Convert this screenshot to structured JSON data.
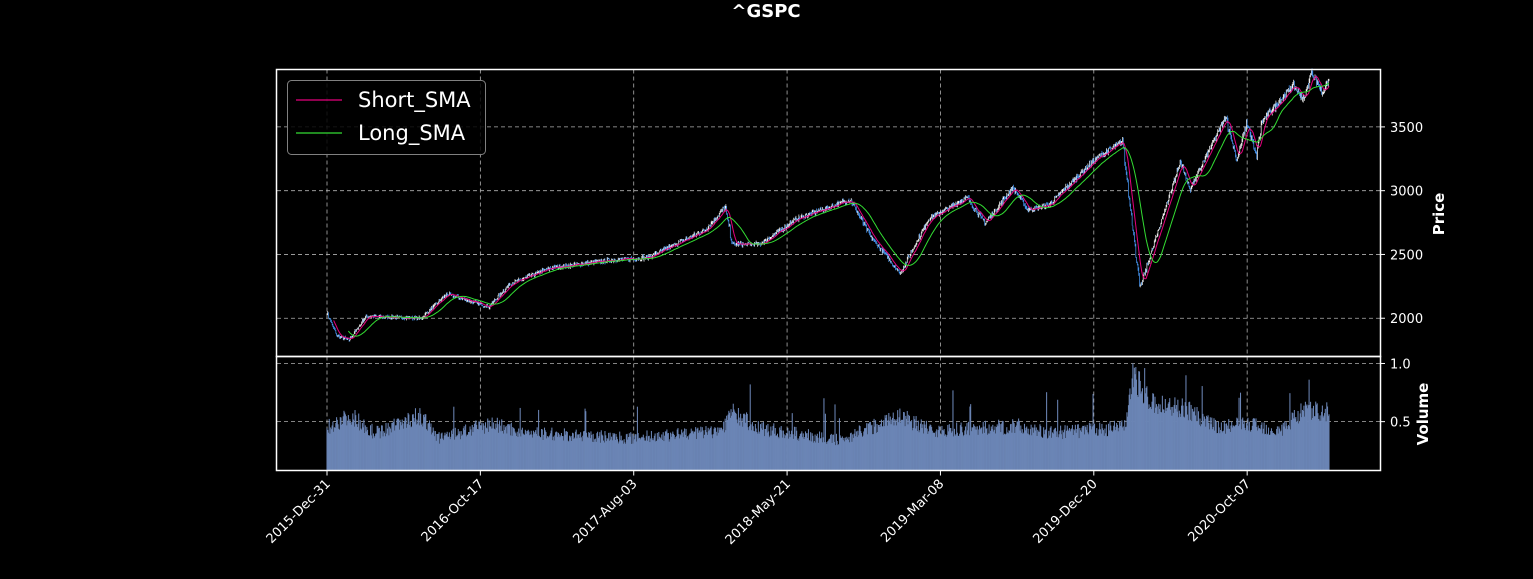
{
  "figure_title": "^GSPC",
  "colors": {
    "background": "#000000",
    "axes_edge": "#ffffff",
    "grid": "#b0b0b0",
    "candle_up": "#ffffff",
    "candle_down": "#4a9eff",
    "short_sma": "#e6007e",
    "long_sma": "#33dd33",
    "volume": "#6b85b5"
  },
  "chart_data": [
    {
      "type": "candlestick",
      "title": "^GSPC",
      "ylabel": "Price",
      "ylim": [
        1700,
        3950
      ],
      "yticks": [
        2000,
        2500,
        3000,
        3500
      ],
      "grid": true,
      "y_axis_side": "right",
      "legend_position": "upper-left",
      "legend": [
        "Short_SMA",
        "Long_SMA"
      ],
      "xtick_labels": [
        "2015-Dec-31",
        "2016-Oct-17",
        "2017-Aug-03",
        "2018-May-21",
        "2019-Mar-08",
        "2019-Dec-20",
        "2020-Oct-07"
      ],
      "price_waypoints": [
        [
          "2015-12-31",
          2044
        ],
        [
          "2016-01-20",
          1860
        ],
        [
          "2016-02-11",
          1829
        ],
        [
          "2016-03-15",
          2015
        ],
        [
          "2016-06-27",
          2000
        ],
        [
          "2016-08-15",
          2190
        ],
        [
          "2016-11-03",
          2090
        ],
        [
          "2016-12-13",
          2270
        ],
        [
          "2017-03-01",
          2395
        ],
        [
          "2017-06-19",
          2453
        ],
        [
          "2017-09-01",
          2476
        ],
        [
          "2017-12-18",
          2690
        ],
        [
          "2018-01-26",
          2872
        ],
        [
          "2018-02-08",
          2580
        ],
        [
          "2018-04-02",
          2580
        ],
        [
          "2018-06-11",
          2780
        ],
        [
          "2018-09-20",
          2930
        ],
        [
          "2018-10-29",
          2640
        ],
        [
          "2018-12-24",
          2351
        ],
        [
          "2019-02-15",
          2775
        ],
        [
          "2019-04-30",
          2945
        ],
        [
          "2019-06-03",
          2745
        ],
        [
          "2019-07-26",
          3025
        ],
        [
          "2019-08-23",
          2850
        ],
        [
          "2019-10-02",
          2887
        ],
        [
          "2019-12-27",
          3240
        ],
        [
          "2020-02-19",
          3386
        ],
        [
          "2020-03-23",
          2237
        ],
        [
          "2020-06-08",
          3232
        ],
        [
          "2020-06-26",
          3010
        ],
        [
          "2020-09-02",
          3580
        ],
        [
          "2020-09-23",
          3237
        ],
        [
          "2020-10-12",
          3535
        ],
        [
          "2020-10-30",
          3270
        ],
        [
          "2020-11-10",
          3545
        ],
        [
          "2021-01-08",
          3825
        ],
        [
          "2021-01-29",
          3715
        ],
        [
          "2021-02-12",
          3935
        ],
        [
          "2021-03-04",
          3768
        ],
        [
          "2021-03-17",
          3870
        ]
      ],
      "series": [
        {
          "name": "Short_SMA",
          "color": "#e6007e"
        },
        {
          "name": "Long_SMA",
          "color": "#33dd33"
        }
      ]
    },
    {
      "type": "bar",
      "ylabel": "Volume",
      "ylim": [
        0.08,
        1.06
      ],
      "yticks": [
        0.5,
        1.0
      ],
      "ytick_labels": [
        "0.5",
        "1.0"
      ],
      "grid": true,
      "volume_waypoints": [
        [
          "2015-12-31",
          0.45
        ],
        [
          "2016-02-15",
          0.55
        ],
        [
          "2016-04-01",
          0.4
        ],
        [
          "2016-06-24",
          0.55
        ],
        [
          "2016-08-01",
          0.36
        ],
        [
          "2016-11-09",
          0.48
        ],
        [
          "2017-01-15",
          0.4
        ],
        [
          "2017-08-01",
          0.36
        ],
        [
          "2018-01-15",
          0.42
        ],
        [
          "2018-02-08",
          0.58
        ],
        [
          "2018-04-01",
          0.44
        ],
        [
          "2018-09-01",
          0.34
        ],
        [
          "2018-12-20",
          0.55
        ],
        [
          "2019-03-01",
          0.42
        ],
        [
          "2019-08-05",
          0.46
        ],
        [
          "2019-10-01",
          0.4
        ],
        [
          "2020-02-25",
          0.45
        ],
        [
          "2020-03-10",
          0.9
        ],
        [
          "2020-04-15",
          0.65
        ],
        [
          "2020-06-15",
          0.62
        ],
        [
          "2020-08-15",
          0.45
        ],
        [
          "2020-10-15",
          0.48
        ],
        [
          "2020-12-15",
          0.42
        ],
        [
          "2021-01-27",
          0.6
        ],
        [
          "2021-03-17",
          0.58
        ]
      ]
    }
  ]
}
